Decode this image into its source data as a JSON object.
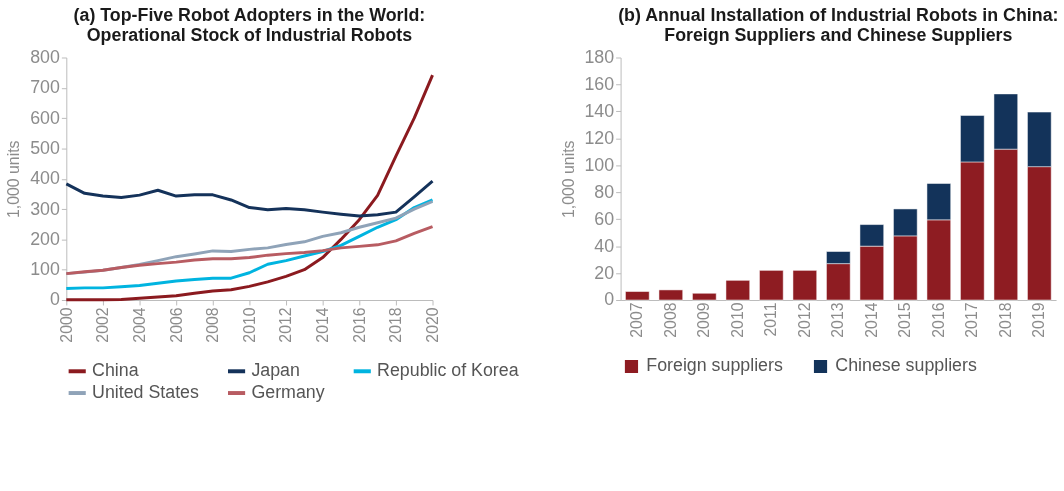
{
  "chart_data": [
    {
      "type": "line",
      "title": "(a) Top-Five Robot Adopters in the World:\nOperational Stock of Industrial Robots",
      "ylabel": "1,000 units",
      "x": [
        2000,
        2001,
        2002,
        2003,
        2004,
        2005,
        2006,
        2007,
        2008,
        2009,
        2010,
        2011,
        2012,
        2013,
        2014,
        2015,
        2016,
        2017,
        2018,
        2019,
        2020
      ],
      "series": [
        {
          "name": "China",
          "color": "#8b1a1f",
          "values": [
            1,
            1,
            1,
            2,
            6,
            10,
            14,
            22,
            30,
            34,
            45,
            60,
            78,
            100,
            140,
            200,
            265,
            345,
            475,
            600,
            742
          ]
        },
        {
          "name": "Japan",
          "color": "#14325a",
          "values": [
            383,
            352,
            343,
            338,
            346,
            362,
            343,
            347,
            347,
            330,
            305,
            298,
            302,
            298,
            290,
            283,
            277,
            281,
            290,
            340,
            392
          ]
        },
        {
          "name": "Republic of Korea",
          "color": "#00b4e0",
          "values": [
            38,
            40,
            40,
            44,
            48,
            55,
            63,
            68,
            72,
            72,
            90,
            118,
            130,
            145,
            160,
            180,
            210,
            240,
            265,
            305,
            330
          ]
        },
        {
          "name": "United States",
          "color": "#8fa3b8",
          "values": [
            87,
            92,
            98,
            107,
            117,
            130,
            143,
            152,
            162,
            160,
            167,
            172,
            183,
            192,
            210,
            222,
            240,
            255,
            270,
            300,
            325
          ]
        },
        {
          "name": "Germany",
          "color": "#b85c62",
          "values": [
            87,
            93,
            98,
            107,
            115,
            120,
            125,
            132,
            136,
            136,
            140,
            148,
            153,
            157,
            163,
            172,
            177,
            182,
            195,
            220,
            242
          ]
        }
      ],
      "xlim": [
        2000,
        2020
      ],
      "xticks": [
        2000,
        2002,
        2004,
        2006,
        2008,
        2010,
        2012,
        2014,
        2016,
        2018,
        2020
      ],
      "ylim": [
        0,
        800
      ],
      "yticks": [
        0,
        100,
        200,
        300,
        400,
        500,
        600,
        700,
        800
      ],
      "grid": false,
      "legend": "bottom",
      "line_style": "solid",
      "marker": "none"
    },
    {
      "type": "bar",
      "title": "(b) Annual Installation of Industrial Robots in China:\nForeign Suppliers and Chinese Suppliers",
      "ylabel": "1,000 units",
      "categories": [
        "2007",
        "2008",
        "2009",
        "2010",
        "2011",
        "2012",
        "2013",
        "2014",
        "2015",
        "2016",
        "2017",
        "2018",
        "2019"
      ],
      "stacked": true,
      "series": [
        {
          "name": "Foreign suppliers",
          "color": "#8e1c22",
          "values": [
            6.3,
            7.5,
            5,
            14.6,
            22,
            22,
            27,
            40,
            47.6,
            59.5,
            102.5,
            112,
            99
          ]
        },
        {
          "name": "Chinese suppliers",
          "color": "#13335a",
          "values": [
            null,
            null,
            null,
            null,
            null,
            null,
            9,
            16,
            20,
            27,
            34.5,
            41,
            40.5
          ]
        }
      ],
      "ylim": [
        0,
        180
      ],
      "yticks": [
        0,
        20,
        40,
        60,
        80,
        100,
        120,
        140,
        160,
        180
      ],
      "grid": false,
      "legend": "bottom"
    }
  ]
}
